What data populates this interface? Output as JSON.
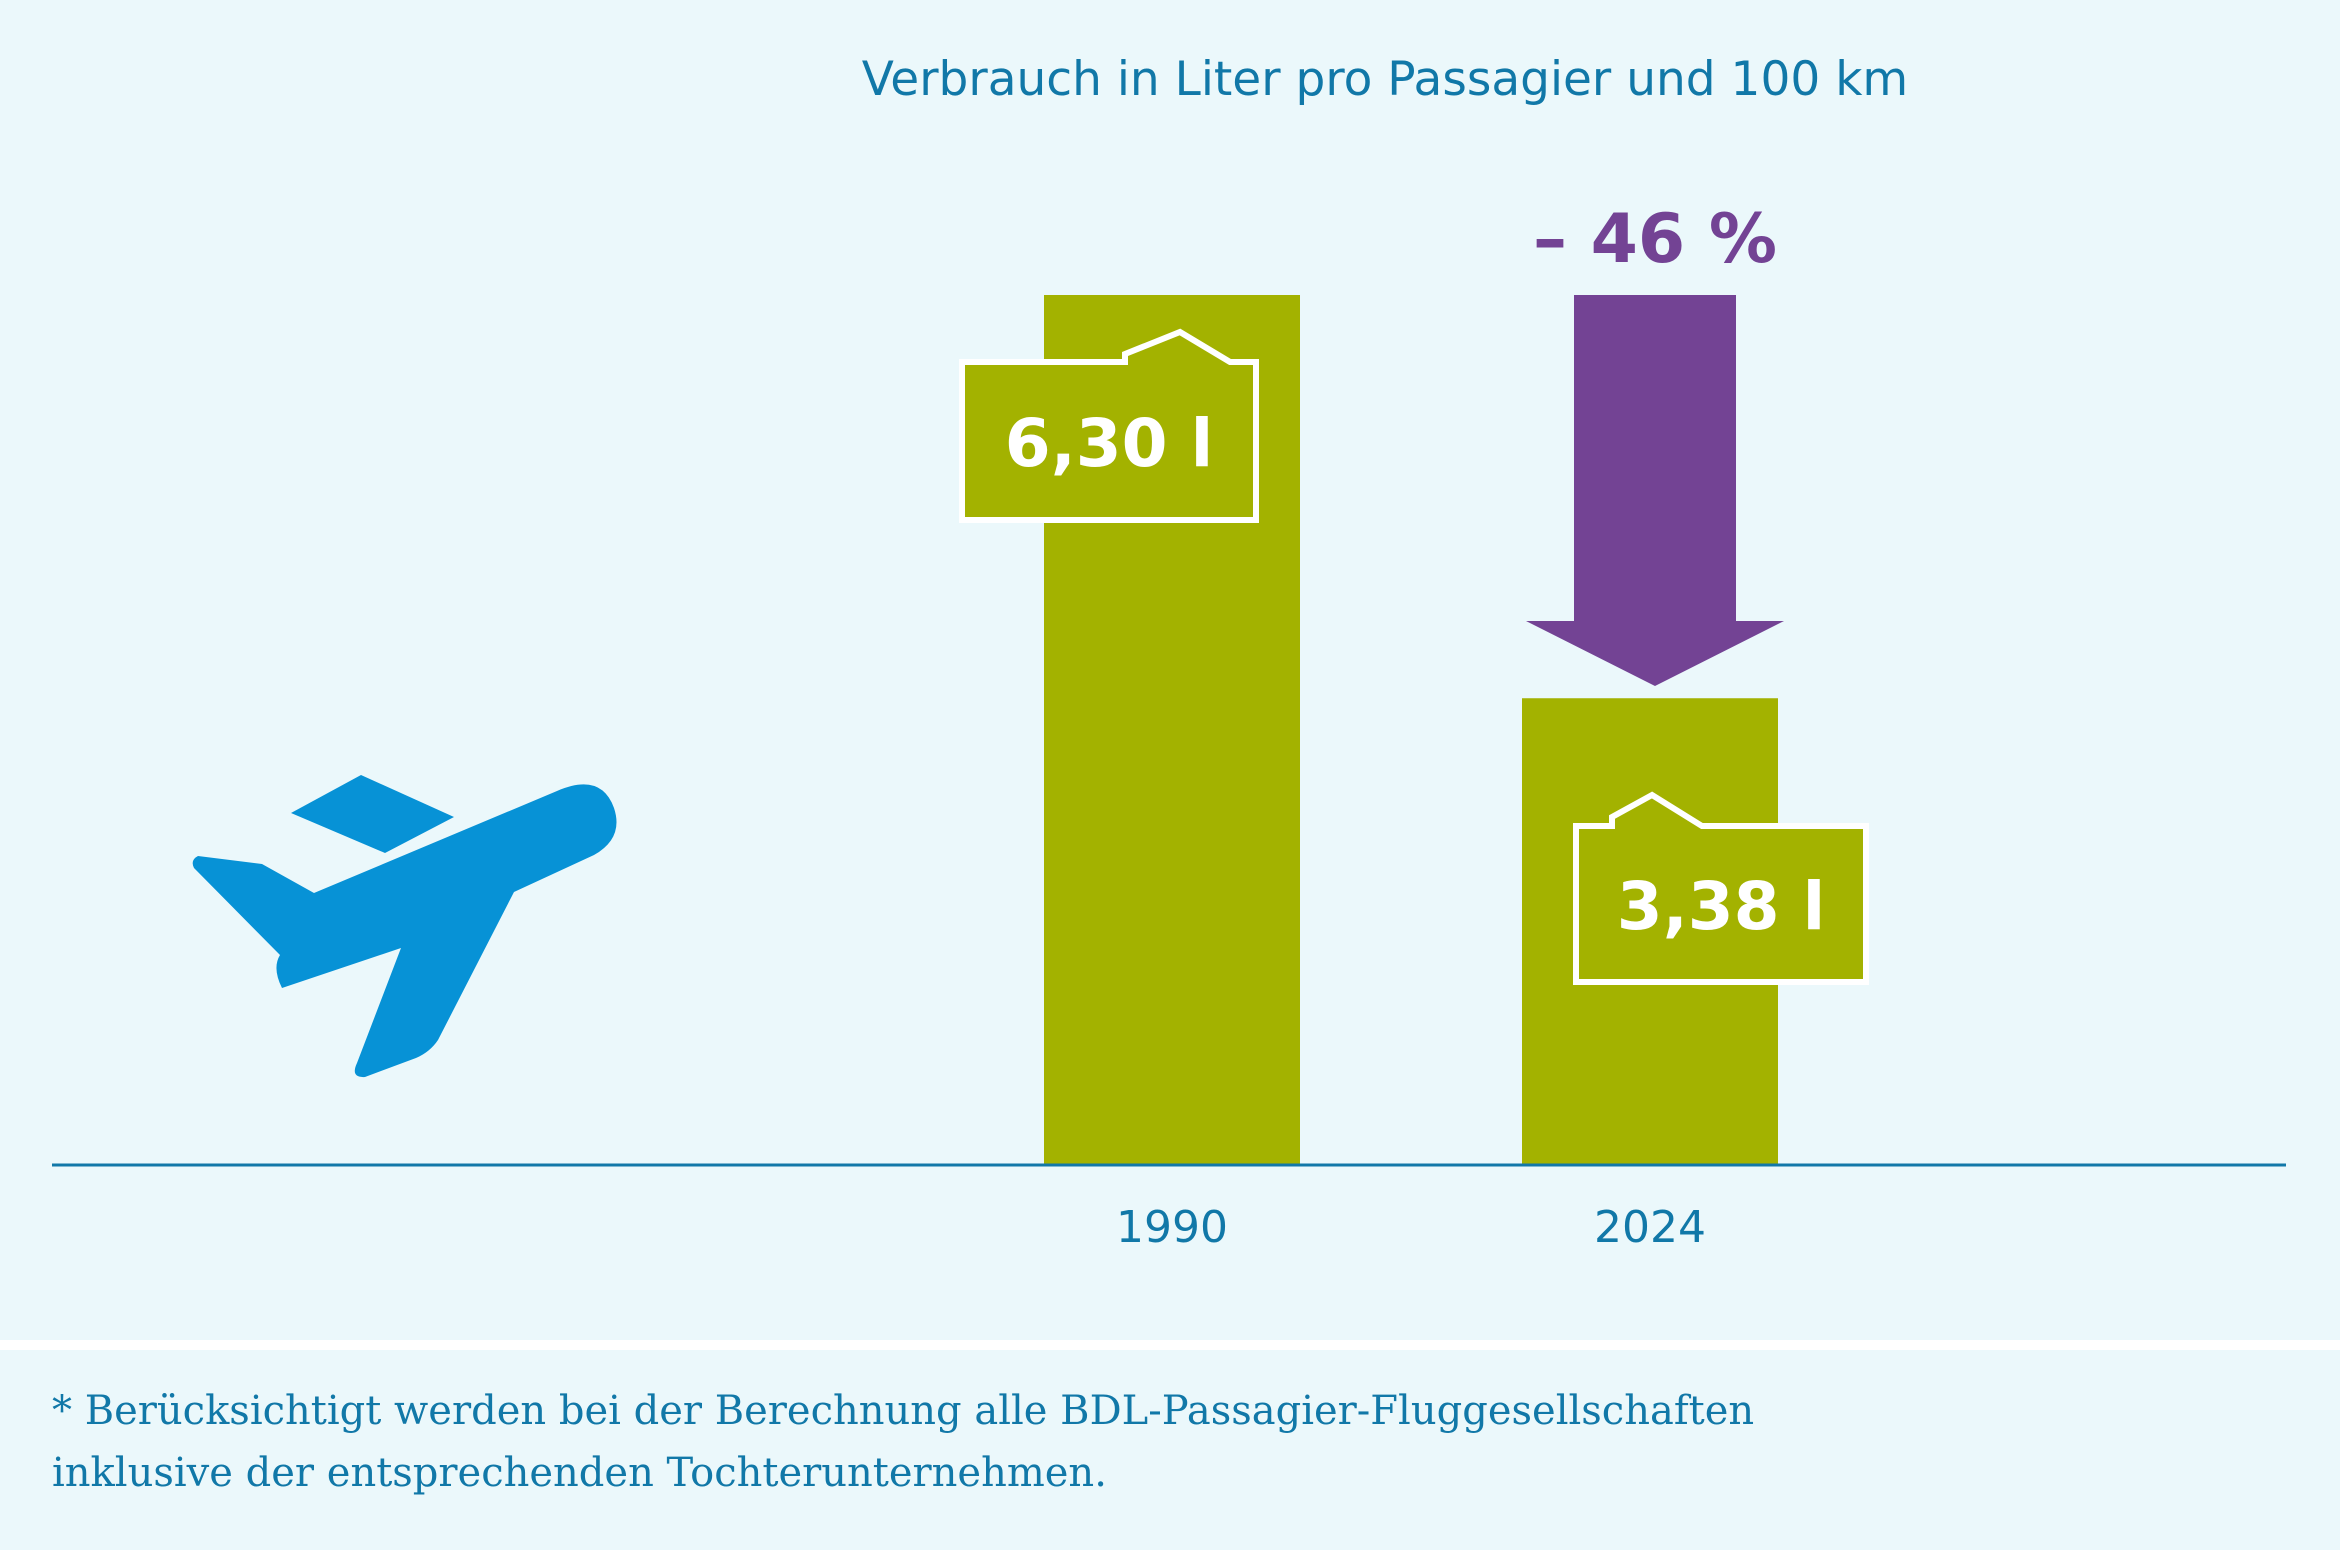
{
  "chart_data": {
    "type": "bar",
    "title": "Verbrauch in Liter pro Passagier und 100 km",
    "categories": [
      "1990",
      "2024"
    ],
    "values": [
      6.3,
      3.38
    ],
    "value_labels": [
      "6,30 l",
      "3,38 l"
    ],
    "ylim": [
      0,
      6.3
    ],
    "change_label": "– 46 %",
    "grid": false,
    "colors": {
      "bar": "#a3b200",
      "arrow": "#734394",
      "text": "#1178a8",
      "axis": "#1178a8",
      "icon": "#0792d6",
      "label_text": "#ffffff"
    }
  },
  "icon": "airplane-takeoff-icon",
  "footnote": {
    "line1": "* Berücksichtigt werden bei der Berechnung alle BDL-Passagier-Fluggesellschaften",
    "line2": "inklusive der entsprechenden Tochterunternehmen."
  }
}
